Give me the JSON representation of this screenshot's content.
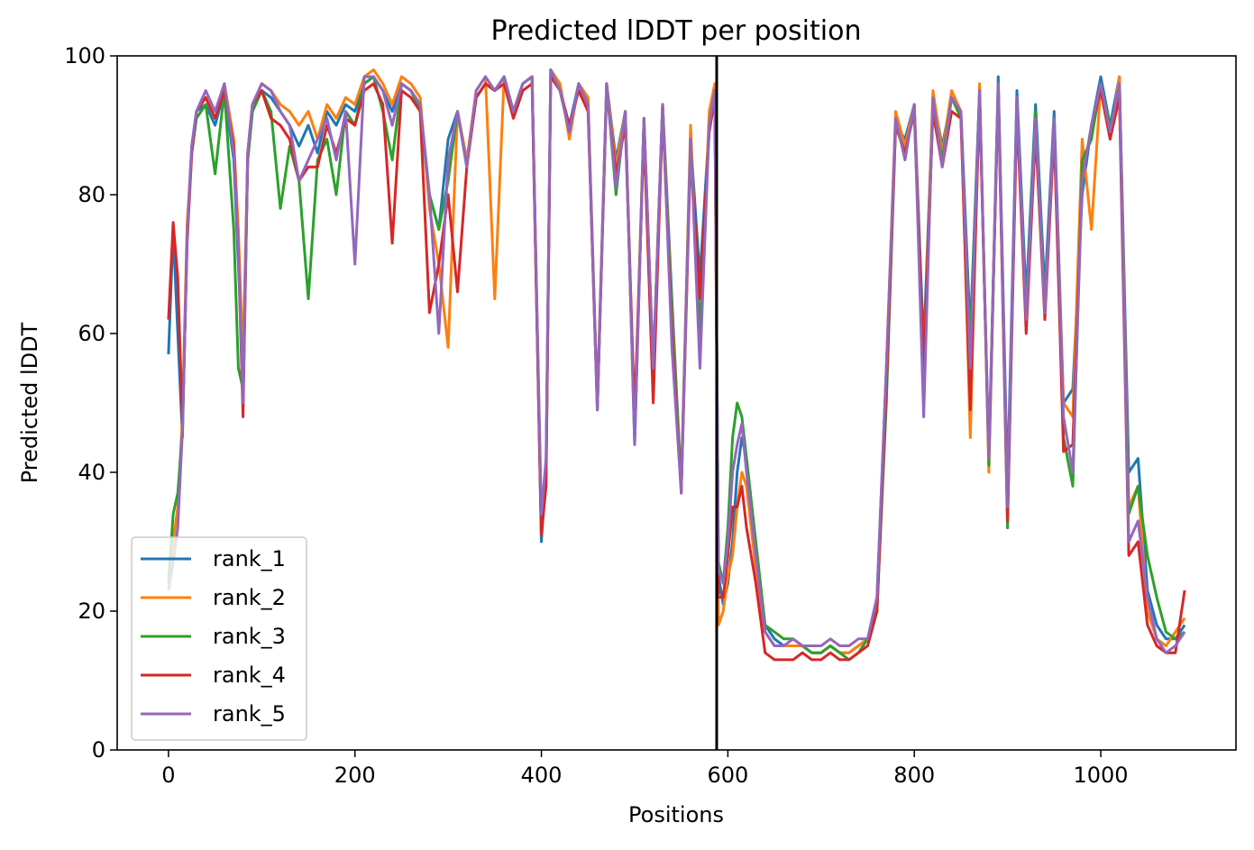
{
  "chart_data": {
    "type": "line",
    "title": "Predicted lDDT per position",
    "xlabel": "Positions",
    "ylabel": "Predicted lDDT",
    "xlim": [
      -55,
      1145
    ],
    "ylim": [
      0,
      100
    ],
    "xticks": [
      0,
      200,
      400,
      600,
      800,
      1000
    ],
    "yticks": [
      0,
      20,
      40,
      60,
      80,
      100
    ],
    "grid": false,
    "legend_position": "lower-left",
    "vertical_line": {
      "x": 588,
      "color": "#000000"
    },
    "x": [
      0,
      5,
      10,
      15,
      20,
      25,
      30,
      40,
      50,
      60,
      70,
      75,
      80,
      85,
      90,
      100,
      110,
      120,
      130,
      140,
      150,
      160,
      170,
      180,
      190,
      200,
      210,
      220,
      230,
      240,
      250,
      260,
      270,
      280,
      290,
      300,
      310,
      320,
      330,
      340,
      350,
      360,
      370,
      380,
      390,
      400,
      405,
      410,
      420,
      430,
      440,
      450,
      460,
      470,
      480,
      490,
      500,
      510,
      520,
      530,
      540,
      550,
      560,
      570,
      580,
      586,
      590,
      595,
      600,
      605,
      610,
      615,
      620,
      630,
      640,
      650,
      660,
      670,
      680,
      690,
      700,
      710,
      720,
      730,
      740,
      750,
      760,
      770,
      780,
      790,
      800,
      810,
      820,
      830,
      840,
      850,
      860,
      870,
      880,
      890,
      900,
      910,
      920,
      930,
      940,
      950,
      960,
      970,
      980,
      990,
      1000,
      1010,
      1020,
      1030,
      1040,
      1050,
      1060,
      1070,
      1080,
      1090
    ],
    "series": [
      {
        "name": "rank_1",
        "color": "#1f77b4",
        "values": [
          57,
          75,
          60,
          45,
          75,
          87,
          92,
          93,
          90,
          95,
          85,
          70,
          55,
          85,
          92,
          95,
          94,
          92,
          90,
          87,
          90,
          86,
          92,
          90,
          93,
          92,
          96,
          97,
          95,
          92,
          96,
          95,
          93,
          80,
          75,
          88,
          92,
          85,
          94,
          96,
          95,
          97,
          92,
          96,
          97,
          30,
          40,
          98,
          95,
          90,
          96,
          93,
          50,
          96,
          85,
          92,
          44,
          91,
          55,
          93,
          65,
          38,
          88,
          68,
          90,
          95,
          25,
          21,
          24,
          30,
          40,
          45,
          42,
          28,
          18,
          16,
          15,
          15,
          15,
          14,
          14,
          15,
          14,
          14,
          15,
          16,
          22,
          55,
          90,
          88,
          93,
          58,
          94,
          87,
          94,
          92,
          60,
          95,
          42,
          97,
          38,
          95,
          65,
          93,
          66,
          92,
          50,
          52,
          80,
          90,
          97,
          90,
          97,
          40,
          42,
          23,
          18,
          16,
          16,
          18
        ]
      },
      {
        "name": "rank_2",
        "color": "#ff7f0e",
        "values": [
          25,
          30,
          35,
          48,
          76,
          86,
          92,
          94,
          91,
          96,
          88,
          75,
          56,
          86,
          93,
          96,
          95,
          93,
          92,
          90,
          92,
          88,
          93,
          91,
          94,
          93,
          97,
          98,
          96,
          93,
          97,
          96,
          94,
          78,
          70,
          58,
          92,
          85,
          95,
          97,
          65,
          97,
          92,
          96,
          97,
          32,
          38,
          98,
          96,
          88,
          96,
          94,
          50,
          96,
          84,
          92,
          47,
          91,
          55,
          93,
          63,
          38,
          90,
          58,
          92,
          96,
          18,
          20,
          25,
          28,
          35,
          40,
          38,
          26,
          17,
          15,
          15,
          15,
          15,
          14,
          14,
          15,
          14,
          14,
          15,
          16,
          20,
          55,
          92,
          87,
          93,
          55,
          95,
          86,
          95,
          92,
          45,
          96,
          40,
          96,
          35,
          93,
          62,
          90,
          64,
          90,
          50,
          48,
          88,
          75,
          96,
          88,
          97,
          35,
          38,
          20,
          16,
          15,
          17,
          19
        ]
      },
      {
        "name": "rank_3",
        "color": "#2ca02c",
        "values": [
          24,
          34,
          37,
          46,
          74,
          86,
          91,
          93,
          83,
          95,
          75,
          55,
          52,
          85,
          92,
          95,
          92,
          78,
          87,
          82,
          65,
          85,
          88,
          80,
          92,
          90,
          96,
          97,
          92,
          85,
          96,
          95,
          92,
          80,
          75,
          82,
          92,
          84,
          94,
          96,
          95,
          97,
          92,
          96,
          97,
          31,
          40,
          98,
          95,
          89,
          96,
          93,
          49,
          96,
          80,
          92,
          45,
          91,
          53,
          93,
          62,
          38,
          88,
          60,
          90,
          95,
          27,
          24,
          32,
          45,
          50,
          48,
          42,
          30,
          18,
          17,
          16,
          16,
          15,
          14,
          14,
          15,
          14,
          13,
          14,
          16,
          20,
          50,
          90,
          86,
          92,
          52,
          93,
          85,
          94,
          91,
          58,
          95,
          41,
          96,
          32,
          94,
          63,
          92,
          64,
          91,
          45,
          38,
          85,
          88,
          96,
          90,
          95,
          34,
          38,
          28,
          22,
          17,
          16,
          17
        ]
      },
      {
        "name": "rank_4",
        "color": "#d62728",
        "values": [
          62,
          76,
          68,
          47,
          73,
          86,
          92,
          94,
          91,
          95,
          87,
          72,
          48,
          86,
          93,
          95,
          91,
          90,
          88,
          82,
          84,
          84,
          90,
          86,
          91,
          90,
          95,
          96,
          93,
          73,
          95,
          94,
          92,
          63,
          70,
          80,
          66,
          84,
          94,
          96,
          95,
          96,
          91,
          95,
          96,
          31,
          38,
          97,
          95,
          90,
          95,
          92,
          49,
          95,
          83,
          90,
          48,
          89,
          50,
          92,
          60,
          37,
          86,
          65,
          89,
          94,
          22,
          22,
          28,
          35,
          35,
          38,
          32,
          24,
          14,
          13,
          13,
          13,
          14,
          13,
          13,
          14,
          13,
          13,
          14,
          15,
          20,
          52,
          90,
          86,
          92,
          55,
          92,
          84,
          92,
          91,
          49,
          94,
          42,
          95,
          33,
          92,
          60,
          89,
          62,
          89,
          43,
          44,
          82,
          90,
          95,
          88,
          94,
          28,
          30,
          18,
          15,
          14,
          14,
          23
        ]
      },
      {
        "name": "rank_5",
        "color": "#9467bd",
        "values": [
          23,
          27,
          32,
          46,
          74,
          87,
          92,
          95,
          92,
          96,
          86,
          72,
          50,
          86,
          93,
          96,
          95,
          92,
          90,
          82,
          85,
          88,
          91,
          85,
          92,
          70,
          97,
          97,
          95,
          90,
          96,
          95,
          93,
          80,
          60,
          85,
          92,
          84,
          95,
          97,
          95,
          97,
          92,
          96,
          97,
          34,
          42,
          98,
          95,
          89,
          96,
          93,
          49,
          96,
          81,
          92,
          44,
          91,
          55,
          93,
          58,
          37,
          88,
          55,
          90,
          95,
          26,
          24,
          30,
          40,
          44,
          47,
          40,
          28,
          17,
          15,
          15,
          16,
          15,
          15,
          15,
          16,
          15,
          15,
          16,
          16,
          22,
          55,
          91,
          85,
          93,
          48,
          94,
          84,
          94,
          92,
          55,
          95,
          42,
          96,
          35,
          94,
          62,
          91,
          63,
          91,
          48,
          40,
          82,
          90,
          96,
          89,
          96,
          30,
          33,
          22,
          16,
          14,
          15,
          17
        ]
      }
    ]
  }
}
